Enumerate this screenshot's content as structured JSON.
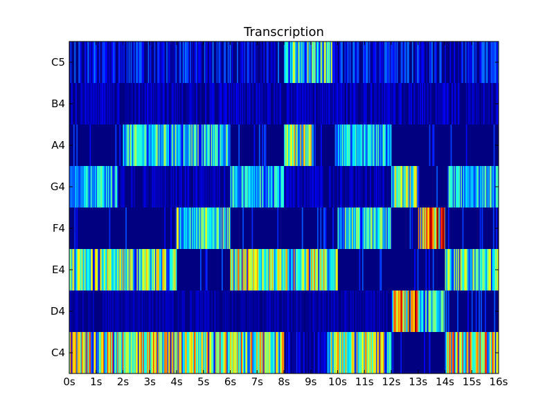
{
  "chart_data": {
    "type": "heatmap",
    "title": "Transcription",
    "xlabel": "",
    "ylabel": "",
    "xlim": [
      0,
      16
    ],
    "x_ticks": [
      "0s",
      "1s",
      "2s",
      "3s",
      "4s",
      "5s",
      "6s",
      "7s",
      "8s",
      "9s",
      "10s",
      "11s",
      "12s",
      "13s",
      "14s",
      "15s",
      "16s"
    ],
    "y_ticks": [
      "C5",
      "B4",
      "A4",
      "G4",
      "F4",
      "E4",
      "D4",
      "C4"
    ],
    "colormap": "jet",
    "value_range": [
      0,
      1
    ],
    "grid": false,
    "rows": [
      {
        "note": "C5",
        "segments": [
          {
            "start": 0.0,
            "end": 8.0,
            "level": 0.12
          },
          {
            "start": 8.0,
            "end": 9.8,
            "level": 0.45
          },
          {
            "start": 9.8,
            "end": 16.0,
            "level": 0.12
          }
        ]
      },
      {
        "note": "B4",
        "segments": [
          {
            "start": 0.0,
            "end": 16.0,
            "level": 0.06
          }
        ]
      },
      {
        "note": "A4",
        "segments": [
          {
            "start": 0.0,
            "end": 2.0,
            "level": 0.0
          },
          {
            "start": 2.0,
            "end": 6.0,
            "level": 0.4
          },
          {
            "start": 6.0,
            "end": 8.0,
            "level": 0.0
          },
          {
            "start": 8.0,
            "end": 9.1,
            "level": 0.55
          },
          {
            "start": 9.1,
            "end": 9.9,
            "level": 0.0
          },
          {
            "start": 9.9,
            "end": 12.0,
            "level": 0.35
          },
          {
            "start": 12.0,
            "end": 16.0,
            "level": 0.02
          }
        ]
      },
      {
        "note": "G4",
        "segments": [
          {
            "start": 0.0,
            "end": 1.8,
            "level": 0.35
          },
          {
            "start": 1.8,
            "end": 6.0,
            "level": 0.05
          },
          {
            "start": 6.0,
            "end": 8.0,
            "level": 0.35
          },
          {
            "start": 8.0,
            "end": 12.0,
            "level": 0.05
          },
          {
            "start": 12.0,
            "end": 13.0,
            "level": 0.5
          },
          {
            "start": 13.0,
            "end": 14.1,
            "level": 0.0
          },
          {
            "start": 14.1,
            "end": 16.0,
            "level": 0.35
          }
        ]
      },
      {
        "note": "F4",
        "segments": [
          {
            "start": 0.0,
            "end": 4.0,
            "level": 0.02
          },
          {
            "start": 4.0,
            "end": 6.0,
            "level": 0.45
          },
          {
            "start": 6.0,
            "end": 10.0,
            "level": 0.02
          },
          {
            "start": 10.0,
            "end": 12.0,
            "level": 0.4
          },
          {
            "start": 12.0,
            "end": 13.0,
            "level": 0.0
          },
          {
            "start": 13.0,
            "end": 14.0,
            "level": 0.8
          },
          {
            "start": 14.0,
            "end": 16.0,
            "level": 0.02
          }
        ]
      },
      {
        "note": "E4",
        "segments": [
          {
            "start": 0.0,
            "end": 4.0,
            "level": 0.5
          },
          {
            "start": 4.0,
            "end": 6.0,
            "level": 0.02
          },
          {
            "start": 6.0,
            "end": 10.0,
            "level": 0.55
          },
          {
            "start": 10.0,
            "end": 14.0,
            "level": 0.02
          },
          {
            "start": 14.0,
            "end": 16.0,
            "level": 0.45
          }
        ]
      },
      {
        "note": "D4",
        "segments": [
          {
            "start": 0.0,
            "end": 12.0,
            "level": 0.04
          },
          {
            "start": 12.0,
            "end": 13.0,
            "level": 0.75
          },
          {
            "start": 13.0,
            "end": 14.0,
            "level": 0.4
          },
          {
            "start": 14.0,
            "end": 16.0,
            "level": 0.0
          }
        ]
      },
      {
        "note": "C4",
        "segments": [
          {
            "start": 0.0,
            "end": 8.0,
            "level": 0.6
          },
          {
            "start": 8.0,
            "end": 9.6,
            "level": 0.08
          },
          {
            "start": 9.6,
            "end": 12.0,
            "level": 0.55
          },
          {
            "start": 12.0,
            "end": 14.0,
            "level": 0.02
          },
          {
            "start": 14.0,
            "end": 16.0,
            "level": 0.6
          }
        ]
      }
    ]
  }
}
